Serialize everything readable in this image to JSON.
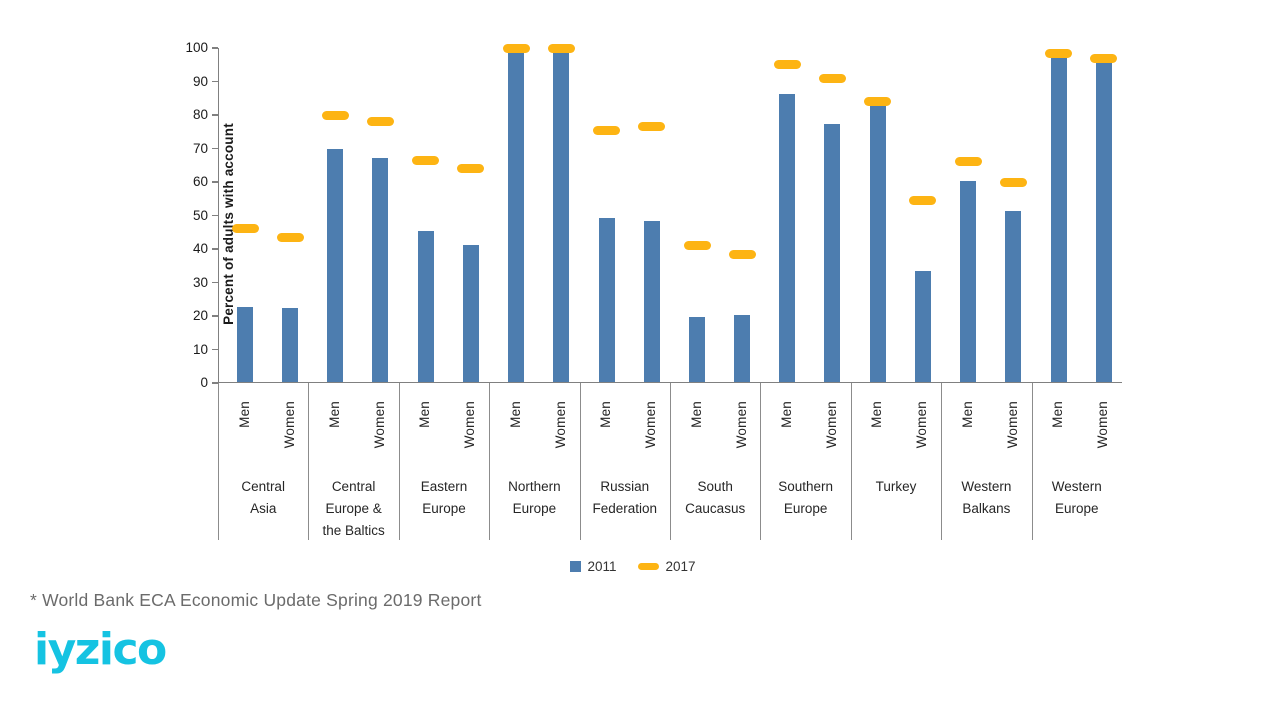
{
  "page": {
    "footnote": "* World Bank ECA Economic Update Spring 2019 Report",
    "logo_text": "iyzico",
    "logo_color": "#15C3E2"
  },
  "legend": {
    "items": [
      {
        "label": "2011",
        "swatch": "square",
        "color": "#4D7DAF"
      },
      {
        "label": "2017",
        "swatch": "dash",
        "color": "#FDB413"
      }
    ]
  },
  "chart_data": {
    "type": "bar",
    "title": "",
    "xlabel": "",
    "ylabel": "Percent of adults with account",
    "ylim": [
      0,
      100
    ],
    "ytick_step": 10,
    "grid": false,
    "legend_position": "bottom",
    "subcategories": [
      "Men",
      "Women"
    ],
    "categories": [
      "Central Asia",
      "Central Europe & the Baltics",
      "Eastern Europe",
      "Northern Europe",
      "Russian Federation",
      "South Caucasus",
      "Southern Europe",
      "Turkey",
      "Western Balkans",
      "Western Europe"
    ],
    "category_label_lines": [
      [
        "Central",
        "Asia"
      ],
      [
        "Central",
        "Europe &",
        "the Baltics"
      ],
      [
        "Eastern",
        "Europe"
      ],
      [
        "Northern",
        "Europe"
      ],
      [
        "Russian",
        "Federation"
      ],
      [
        "South",
        "Caucasus"
      ],
      [
        "Southern",
        "Europe"
      ],
      [
        "Turkey"
      ],
      [
        "Western",
        "Balkans"
      ],
      [
        "Western",
        "Europe"
      ]
    ],
    "series": [
      {
        "name": "2011",
        "style": "bar",
        "color": "#4D7DAF",
        "values_men": [
          22.5,
          69.5,
          45,
          99,
          49,
          19.5,
          86,
          82.5,
          60,
          97.5
        ],
        "values_women": [
          22,
          67,
          41,
          99,
          48,
          20,
          77,
          33,
          51,
          96
        ]
      },
      {
        "name": "2017",
        "style": "dash",
        "color": "#FDB413",
        "values_men": [
          46,
          80,
          66.5,
          100,
          75.5,
          41,
          95,
          84,
          66,
          98.5
        ],
        "values_women": [
          43.5,
          78,
          64,
          100,
          76.5,
          38.5,
          91,
          54.5,
          60,
          97
        ]
      }
    ],
    "axis_color": "#808080",
    "text_color": "#262626"
  }
}
